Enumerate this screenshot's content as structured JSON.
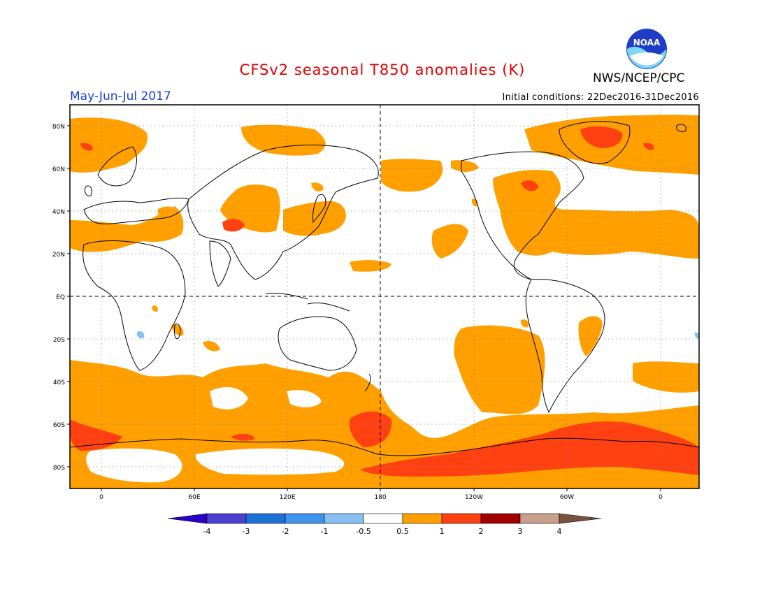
{
  "header": {
    "title": "CFSv2 seasonal T850 anomalies (K)",
    "season": "May-Jun-Jul 2017",
    "initial_conditions": "Initial conditions: 22Dec2016-31Dec2016",
    "agency": "NWS/NCEP/CPC",
    "logo_text": "NOAA"
  },
  "map": {
    "lat_labels": [
      "80N",
      "60N",
      "40N",
      "20N",
      "EQ",
      "20S",
      "40S",
      "60S",
      "80S"
    ],
    "lon_labels": [
      "0",
      "60E",
      "120E",
      "180",
      "120W",
      "60W",
      "0"
    ]
  },
  "colorbar": {
    "labels": [
      "-4",
      "-3",
      "-2",
      "-1",
      "-0.5",
      "0.5",
      "1",
      "2",
      "3",
      "4"
    ],
    "colors": [
      "#2a00c8",
      "#4b3fd2",
      "#1f6fd8",
      "#3f95ec",
      "#88bff2",
      "#ffffff",
      "#ffa000",
      "#ff4010",
      "#a00000",
      "#c8a08c",
      "#7a5040"
    ]
  }
}
